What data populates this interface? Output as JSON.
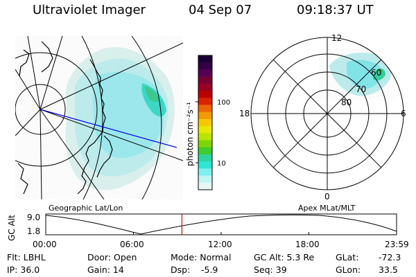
{
  "header": {
    "instrument": "Ultraviolet Imager",
    "date": "04 Sep 07",
    "time": "09:18:37 UT"
  },
  "left_panel": {
    "caption": "Geographic Lat/Lon"
  },
  "colorbar": {
    "unit_label": "photon cm⁻²s⁻¹",
    "ticks": [
      "100",
      "10"
    ],
    "colors": [
      "#1a0033",
      "#330044",
      "#550055",
      "#770033",
      "#990022",
      "#bb0000",
      "#dd2200",
      "#ee6600",
      "#f29a00",
      "#f5c800",
      "#e8e800",
      "#b8e600",
      "#7ed600",
      "#3ecc2e",
      "#2ed4a0",
      "#2ee6d4",
      "#7ef0ee",
      "#bff5f2",
      "#e6f7f5"
    ]
  },
  "right_panel": {
    "caption": "Apex MLat/MLT",
    "mlt_labels": {
      "top": "12",
      "left": "18",
      "right": "6",
      "bottom": "0"
    },
    "lat_labels": [
      "60",
      "70",
      "80"
    ]
  },
  "altitude_plot": {
    "ylabel": "GC Alt",
    "yticks": [
      "9.0",
      "1.8"
    ],
    "xticks": [
      "00:00",
      "06:00",
      "12:00",
      "18:00",
      "23:59"
    ],
    "current_marker_hour": 9.31
  },
  "footer": {
    "flt": "Flt: LBHL",
    "ip": "IP: 36.0",
    "door": "Door: Open",
    "gain": "Gain: 14",
    "mode": "Mode: Normal",
    "dsp_label": "Dsp:",
    "dsp_value": "-5.9",
    "gcalt": "GC Alt: 5.3 Re",
    "seq": "Seq: 39",
    "glat_label": "GLat:",
    "glat_value": "-72.3",
    "glon_label": "GLon:",
    "glon_value": "33.5"
  }
}
